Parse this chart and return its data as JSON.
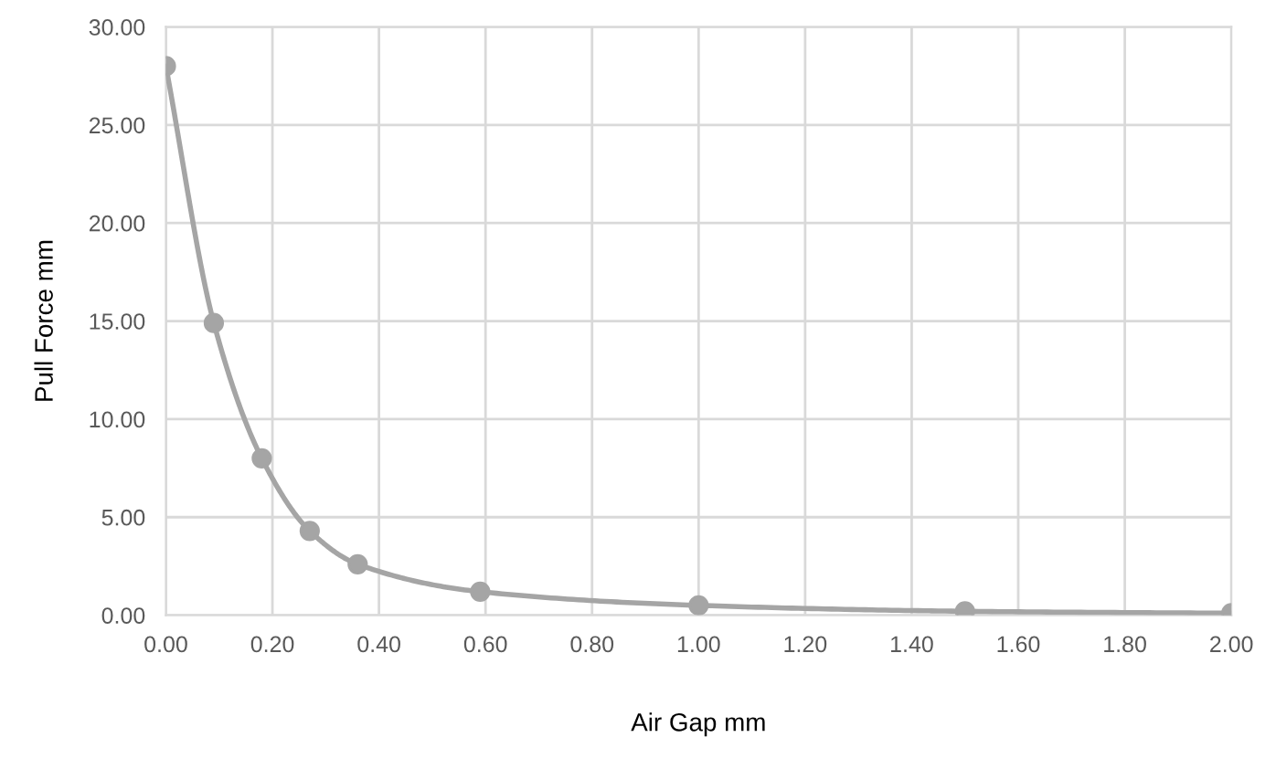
{
  "chart_data": {
    "type": "line",
    "xlabel": "Air Gap mm",
    "ylabel": "Pull Force mm",
    "x": [
      0.0,
      0.09,
      0.18,
      0.27,
      0.36,
      0.59,
      1.0,
      1.5,
      2.0
    ],
    "series": [
      {
        "color": "#a5a5a5",
        "values": [
          28.0,
          14.9,
          8.0,
          4.3,
          2.6,
          1.2,
          0.5,
          0.2,
          0.1
        ]
      }
    ],
    "marker": "circle",
    "line_style": "solid",
    "grid": true,
    "xlim": [
      0,
      2
    ],
    "ylim": [
      0,
      30
    ],
    "xticks": [
      {
        "value": 0,
        "label": "0.00"
      },
      {
        "value": 0.2,
        "label": "0.20"
      },
      {
        "value": 0.4,
        "label": "0.40"
      },
      {
        "value": 0.6,
        "label": "0.60"
      },
      {
        "value": 0.8,
        "label": "0.80"
      },
      {
        "value": 1.0,
        "label": "1.00"
      },
      {
        "value": 1.2,
        "label": "1.20"
      },
      {
        "value": 1.4,
        "label": "1.40"
      },
      {
        "value": 1.6,
        "label": "1.60"
      },
      {
        "value": 1.8,
        "label": "1.80"
      },
      {
        "value": 2.0,
        "label": "2.00"
      }
    ],
    "yticks": [
      {
        "value": 0,
        "label": "0.00"
      },
      {
        "value": 5,
        "label": "5.00"
      },
      {
        "value": 10,
        "label": "10.00"
      },
      {
        "value": 15,
        "label": "15.00"
      },
      {
        "value": 20,
        "label": "20.00"
      },
      {
        "value": 25,
        "label": "25.00"
      },
      {
        "value": 30,
        "label": "30.00"
      }
    ]
  }
}
